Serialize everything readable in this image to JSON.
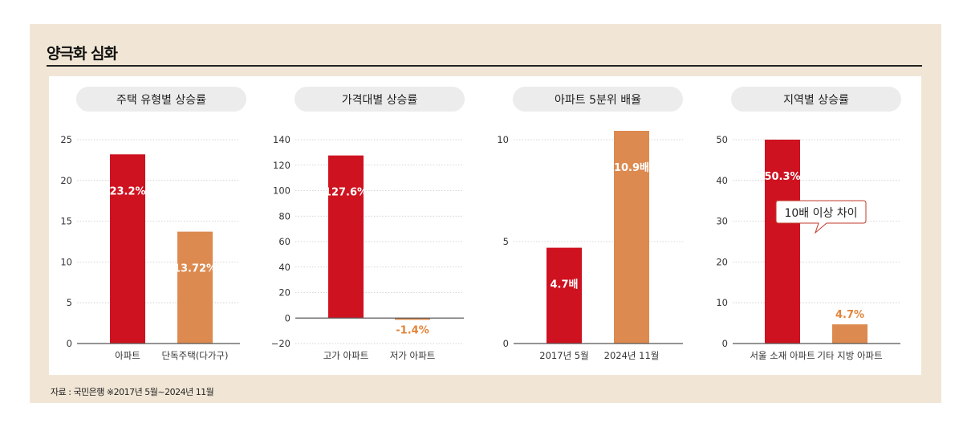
{
  "title": "양극화 심화",
  "source": "자료 : 국민은행 ※2017년 5월~2024년 11월",
  "colors": {
    "red": "#cf1220",
    "orange": "#dc8a4f",
    "frame": "#f1e6d5",
    "pill": "#ececec",
    "grid": "#c8c8c8"
  },
  "chart_data": [
    {
      "type": "bar",
      "title": "주택 유형별 상승률",
      "categories": [
        "아파트",
        "단독주택(다가구)"
      ],
      "values": [
        23.2,
        13.72
      ],
      "value_labels": [
        "23.2%",
        "13.72%"
      ],
      "label_pos": [
        "inside",
        "inside"
      ],
      "bar_colors": [
        "red",
        "orange"
      ],
      "ylim": [
        0,
        25
      ],
      "yticks": [
        0,
        5,
        10,
        15,
        20,
        25
      ],
      "ytick_labels": [
        "0",
        "5",
        "10",
        "15",
        "20",
        "25"
      ],
      "grid": true
    },
    {
      "type": "bar",
      "title": "가격대별 상승률",
      "categories": [
        "고가 아파트",
        "저가 아파트"
      ],
      "values": [
        127.6,
        -1.4
      ],
      "value_labels": [
        "127.6%",
        "-1.4%"
      ],
      "label_pos": [
        "inside",
        "below"
      ],
      "bar_colors": [
        "red",
        "orange"
      ],
      "ylim": [
        -20,
        140
      ],
      "yticks": [
        -20,
        0,
        20,
        40,
        60,
        80,
        100,
        120,
        140
      ],
      "ytick_labels": [
        "−20",
        "0",
        "20",
        "40",
        "60",
        "80",
        "100",
        "120",
        "140"
      ],
      "grid": true
    },
    {
      "type": "bar",
      "title": "아파트 5분위 배율",
      "categories": [
        "2017년 5월",
        "2024년 11월"
      ],
      "values": [
        4.7,
        10.9
      ],
      "value_labels": [
        "4.7배",
        "10.9배"
      ],
      "label_pos": [
        "inside",
        "inside"
      ],
      "bar_colors": [
        "red",
        "orange"
      ],
      "ylim": [
        0,
        10
      ],
      "yticks": [
        0,
        5,
        10
      ],
      "ytick_labels": [
        "0",
        "5",
        "10"
      ],
      "grid": true
    },
    {
      "type": "bar",
      "title": "지역별 상승률",
      "categories": [
        "서울 소재 아파트",
        "기타 지방 아파트"
      ],
      "values": [
        50.3,
        4.7
      ],
      "value_labels": [
        "50.3%",
        "4.7%"
      ],
      "label_pos": [
        "inside",
        "above"
      ],
      "bar_colors": [
        "red",
        "orange"
      ],
      "ylim": [
        0,
        50
      ],
      "yticks": [
        0,
        10,
        20,
        30,
        40,
        50
      ],
      "ytick_labels": [
        "0",
        "10",
        "20",
        "30",
        "40",
        "50"
      ],
      "grid": true,
      "annotation": "10배 이상 차이"
    }
  ]
}
